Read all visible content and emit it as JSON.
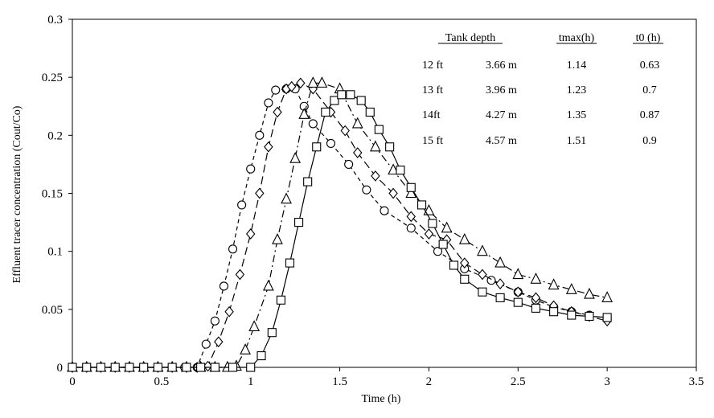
{
  "chart_data": {
    "type": "line",
    "xlabel": "Time (h)",
    "ylabel": "Effluent tracer concentration (Cout/Co)",
    "xlim": [
      0,
      3.5
    ],
    "ylim": [
      0,
      0.3
    ],
    "x_ticks": [
      "0",
      "0.5",
      "1",
      "1.5",
      "2",
      "2.5",
      "3",
      "3.5"
    ],
    "y_ticks": [
      "0",
      "0.05",
      "0.1",
      "0.15",
      "0.2",
      "0.25",
      "0.3"
    ],
    "grid": false,
    "series": [
      {
        "name": "12 ft",
        "marker": "circle",
        "line": "dashed",
        "points": [
          [
            0,
            0
          ],
          [
            0.08,
            0
          ],
          [
            0.16,
            0
          ],
          [
            0.24,
            0
          ],
          [
            0.32,
            0
          ],
          [
            0.4,
            0
          ],
          [
            0.48,
            0
          ],
          [
            0.56,
            0
          ],
          [
            0.63,
            0
          ],
          [
            0.7,
            0
          ],
          [
            0.75,
            0.02
          ],
          [
            0.8,
            0.04
          ],
          [
            0.85,
            0.07
          ],
          [
            0.9,
            0.102
          ],
          [
            0.95,
            0.14
          ],
          [
            1.0,
            0.171
          ],
          [
            1.05,
            0.2
          ],
          [
            1.1,
            0.228
          ],
          [
            1.14,
            0.239
          ],
          [
            1.2,
            0.24
          ],
          [
            1.25,
            0.24
          ],
          [
            1.3,
            0.225
          ],
          [
            1.35,
            0.21
          ],
          [
            1.45,
            0.193
          ],
          [
            1.55,
            0.175
          ],
          [
            1.65,
            0.153
          ],
          [
            1.75,
            0.135
          ],
          [
            1.9,
            0.12
          ],
          [
            2.05,
            0.1
          ],
          [
            2.2,
            0.085
          ],
          [
            2.35,
            0.075
          ],
          [
            2.5,
            0.065
          ],
          [
            2.6,
            0.058
          ],
          [
            2.7,
            0.052
          ],
          [
            2.8,
            0.048
          ],
          [
            2.9,
            0.045
          ],
          [
            3.0,
            0.042
          ]
        ]
      },
      {
        "name": "13 ft",
        "marker": "diamond",
        "line": "long-dash",
        "points": [
          [
            0,
            0
          ],
          [
            0.08,
            0
          ],
          [
            0.16,
            0
          ],
          [
            0.24,
            0
          ],
          [
            0.32,
            0
          ],
          [
            0.4,
            0
          ],
          [
            0.48,
            0
          ],
          [
            0.56,
            0
          ],
          [
            0.64,
            0
          ],
          [
            0.7,
            0
          ],
          [
            0.76,
            0.001
          ],
          [
            0.82,
            0.022
          ],
          [
            0.88,
            0.048
          ],
          [
            0.94,
            0.08
          ],
          [
            1.0,
            0.115
          ],
          [
            1.05,
            0.15
          ],
          [
            1.1,
            0.19
          ],
          [
            1.15,
            0.22
          ],
          [
            1.2,
            0.24
          ],
          [
            1.23,
            0.242
          ],
          [
            1.28,
            0.245
          ],
          [
            1.35,
            0.24
          ],
          [
            1.45,
            0.22
          ],
          [
            1.53,
            0.204
          ],
          [
            1.6,
            0.185
          ],
          [
            1.7,
            0.165
          ],
          [
            1.8,
            0.15
          ],
          [
            1.9,
            0.13
          ],
          [
            2.0,
            0.115
          ],
          [
            2.1,
            0.11
          ],
          [
            2.2,
            0.09
          ],
          [
            2.3,
            0.08
          ],
          [
            2.4,
            0.072
          ],
          [
            2.5,
            0.065
          ],
          [
            2.6,
            0.06
          ],
          [
            2.7,
            0.053
          ],
          [
            2.8,
            0.048
          ],
          [
            2.9,
            0.044
          ],
          [
            3.0,
            0.04
          ]
        ]
      },
      {
        "name": "14ft",
        "marker": "triangle",
        "line": "dash-dot",
        "points": [
          [
            0,
            0
          ],
          [
            0.08,
            0
          ],
          [
            0.16,
            0
          ],
          [
            0.24,
            0
          ],
          [
            0.32,
            0
          ],
          [
            0.4,
            0
          ],
          [
            0.48,
            0
          ],
          [
            0.56,
            0
          ],
          [
            0.64,
            0
          ],
          [
            0.72,
            0
          ],
          [
            0.8,
            0
          ],
          [
            0.87,
            0
          ],
          [
            0.92,
            0.001
          ],
          [
            0.97,
            0.015
          ],
          [
            1.02,
            0.035
          ],
          [
            1.1,
            0.07
          ],
          [
            1.15,
            0.11
          ],
          [
            1.2,
            0.145
          ],
          [
            1.25,
            0.18
          ],
          [
            1.3,
            0.218
          ],
          [
            1.35,
            0.245
          ],
          [
            1.4,
            0.245
          ],
          [
            1.5,
            0.24
          ],
          [
            1.6,
            0.21
          ],
          [
            1.7,
            0.19
          ],
          [
            1.8,
            0.17
          ],
          [
            1.9,
            0.15
          ],
          [
            2.0,
            0.135
          ],
          [
            2.1,
            0.12
          ],
          [
            2.2,
            0.11
          ],
          [
            2.3,
            0.1
          ],
          [
            2.4,
            0.09
          ],
          [
            2.5,
            0.08
          ],
          [
            2.6,
            0.076
          ],
          [
            2.7,
            0.071
          ],
          [
            2.8,
            0.067
          ],
          [
            2.9,
            0.063
          ],
          [
            3.0,
            0.06
          ]
        ]
      },
      {
        "name": "15 ft",
        "marker": "square",
        "line": "solid",
        "points": [
          [
            0,
            0
          ],
          [
            0.08,
            0
          ],
          [
            0.16,
            0
          ],
          [
            0.24,
            0
          ],
          [
            0.32,
            0
          ],
          [
            0.4,
            0
          ],
          [
            0.48,
            0
          ],
          [
            0.56,
            0
          ],
          [
            0.64,
            0
          ],
          [
            0.72,
            0
          ],
          [
            0.8,
            0
          ],
          [
            0.9,
            0
          ],
          [
            1.0,
            0
          ],
          [
            1.06,
            0.01
          ],
          [
            1.12,
            0.03
          ],
          [
            1.17,
            0.058
          ],
          [
            1.22,
            0.09
          ],
          [
            1.27,
            0.125
          ],
          [
            1.32,
            0.16
          ],
          [
            1.37,
            0.19
          ],
          [
            1.42,
            0.22
          ],
          [
            1.47,
            0.23
          ],
          [
            1.51,
            0.235
          ],
          [
            1.56,
            0.235
          ],
          [
            1.62,
            0.23
          ],
          [
            1.67,
            0.22
          ],
          [
            1.72,
            0.205
          ],
          [
            1.78,
            0.19
          ],
          [
            1.84,
            0.17
          ],
          [
            1.9,
            0.155
          ],
          [
            1.96,
            0.14
          ],
          [
            2.02,
            0.124
          ],
          [
            2.08,
            0.106
          ],
          [
            2.14,
            0.088
          ],
          [
            2.2,
            0.076
          ],
          [
            2.3,
            0.065
          ],
          [
            2.4,
            0.06
          ],
          [
            2.5,
            0.056
          ],
          [
            2.6,
            0.051
          ],
          [
            2.7,
            0.048
          ],
          [
            2.8,
            0.045
          ],
          [
            2.9,
            0.044
          ],
          [
            3.0,
            0.043
          ]
        ]
      }
    ],
    "legend_table": {
      "headers": [
        "Tank depth",
        "tmax(h)",
        "t0 (h)"
      ],
      "rows": [
        {
          "ft": "12 ft",
          "m": "3.66 m",
          "tmax": "1.14",
          "t0": "0.63"
        },
        {
          "ft": "13 ft",
          "m": "3.96 m",
          "tmax": "1.23",
          "t0": "0.7"
        },
        {
          "ft": "14ft",
          "m": "4.27 m",
          "tmax": "1.35",
          "t0": "0.87"
        },
        {
          "ft": "15 ft",
          "m": "4.57 m",
          "tmax": "1.51",
          "t0": "0.9"
        }
      ]
    }
  }
}
